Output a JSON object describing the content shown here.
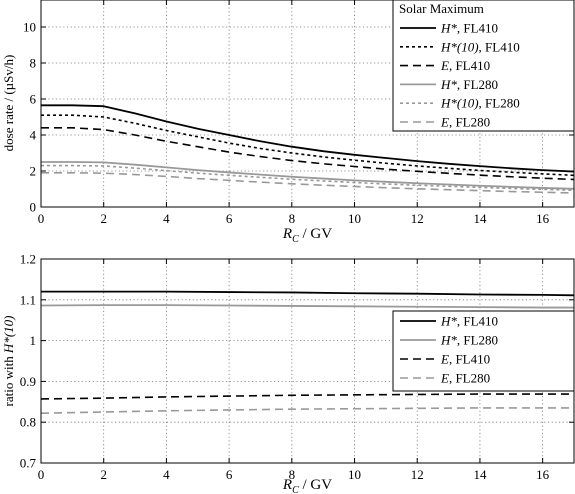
{
  "chart_data": [
    {
      "type": "line",
      "legend_title": "Solar Maximum",
      "legend_position": "top-right",
      "xlabel": {
        "main": "R",
        "sub": "C",
        "rest": " / GV"
      },
      "ylabel": "dose rate / (µSv/h)",
      "xlim": [
        0,
        17
      ],
      "ylim": [
        0,
        11.5
      ],
      "xticks": [
        0,
        2,
        4,
        6,
        8,
        10,
        12,
        14,
        16
      ],
      "yticks": [
        0,
        2,
        4,
        6,
        8,
        10
      ],
      "grid": true,
      "series": [
        {
          "name": "H*, FL410",
          "label_parts": [
            {
              "t": "H*",
              "i": true
            },
            {
              "t": ", FL410",
              "i": false
            }
          ],
          "color": "#000000",
          "dash": "",
          "width": 1.8,
          "x": [
            0,
            1,
            2,
            3,
            4,
            5,
            6,
            7,
            8,
            9,
            10,
            11,
            12,
            13,
            14,
            15,
            16,
            17
          ],
          "y": [
            5.65,
            5.65,
            5.6,
            5.2,
            4.75,
            4.35,
            4.0,
            3.65,
            3.35,
            3.1,
            2.9,
            2.72,
            2.55,
            2.4,
            2.27,
            2.15,
            2.05,
            1.97
          ]
        },
        {
          "name": "H*(10), FL410",
          "label_parts": [
            {
              "t": "H*(10)",
              "i": true
            },
            {
              "t": ", FL410",
              "i": false
            }
          ],
          "color": "#000000",
          "dash": "3,3",
          "width": 1.6,
          "x": [
            0,
            1,
            2,
            3,
            4,
            5,
            6,
            7,
            8,
            9,
            10,
            11,
            12,
            13,
            14,
            15,
            16,
            17
          ],
          "y": [
            5.1,
            5.1,
            5.0,
            4.65,
            4.25,
            3.9,
            3.55,
            3.25,
            3.0,
            2.78,
            2.6,
            2.43,
            2.28,
            2.15,
            2.03,
            1.93,
            1.84,
            1.76
          ]
        },
        {
          "name": "E, FL410",
          "label_parts": [
            {
              "t": "E",
              "i": true
            },
            {
              "t": ", FL410",
              "i": false
            }
          ],
          "color": "#000000",
          "dash": "8,5",
          "width": 1.6,
          "x": [
            0,
            1,
            2,
            3,
            4,
            5,
            6,
            7,
            8,
            9,
            10,
            11,
            12,
            13,
            14,
            15,
            16,
            17
          ],
          "y": [
            4.4,
            4.4,
            4.3,
            4.0,
            3.65,
            3.35,
            3.05,
            2.8,
            2.58,
            2.4,
            2.25,
            2.1,
            1.98,
            1.87,
            1.77,
            1.68,
            1.6,
            1.53
          ]
        },
        {
          "name": "H*, FL280",
          "label_parts": [
            {
              "t": "H*",
              "i": true
            },
            {
              "t": ", FL280",
              "i": false
            }
          ],
          "color": "#999999",
          "dash": "",
          "width": 1.8,
          "x": [
            0,
            1,
            2,
            3,
            4,
            5,
            6,
            7,
            8,
            9,
            10,
            11,
            12,
            13,
            14,
            15,
            16,
            17
          ],
          "y": [
            2.5,
            2.5,
            2.48,
            2.35,
            2.2,
            2.05,
            1.92,
            1.8,
            1.68,
            1.58,
            1.48,
            1.4,
            1.32,
            1.25,
            1.18,
            1.12,
            1.06,
            1.01
          ]
        },
        {
          "name": "H*(10), FL280",
          "label_parts": [
            {
              "t": "H*(10)",
              "i": true
            },
            {
              "t": ", FL280",
              "i": false
            }
          ],
          "color": "#999999",
          "dash": "3,3",
          "width": 1.6,
          "x": [
            0,
            1,
            2,
            3,
            4,
            5,
            6,
            7,
            8,
            9,
            10,
            11,
            12,
            13,
            14,
            15,
            16,
            17
          ],
          "y": [
            2.3,
            2.3,
            2.28,
            2.16,
            2.02,
            1.88,
            1.76,
            1.65,
            1.54,
            1.45,
            1.36,
            1.28,
            1.21,
            1.15,
            1.09,
            1.03,
            0.98,
            0.93
          ]
        },
        {
          "name": "E, FL280",
          "label_parts": [
            {
              "t": "E",
              "i": true
            },
            {
              "t": ", FL280",
              "i": false
            }
          ],
          "color": "#999999",
          "dash": "8,5",
          "width": 1.6,
          "x": [
            0,
            1,
            2,
            3,
            4,
            5,
            6,
            7,
            8,
            9,
            10,
            11,
            12,
            13,
            14,
            15,
            16,
            17
          ],
          "y": [
            1.9,
            1.9,
            1.88,
            1.8,
            1.7,
            1.58,
            1.48,
            1.38,
            1.29,
            1.21,
            1.14,
            1.07,
            1.01,
            0.96,
            0.91,
            0.86,
            0.82,
            0.78
          ]
        }
      ]
    },
    {
      "type": "line",
      "legend_position": "center-right",
      "xlabel": {
        "main": "R",
        "sub": "C",
        "rest": " / GV"
      },
      "ylabel": {
        "plain": "ratio with ",
        "italic": "H*(10)"
      },
      "xlim": [
        0,
        17
      ],
      "ylim": [
        0.7,
        1.2
      ],
      "xticks": [
        0,
        2,
        4,
        6,
        8,
        10,
        12,
        14,
        16
      ],
      "yticks": [
        0.7,
        0.8,
        0.9,
        1,
        1.1,
        1.2
      ],
      "ytick_labels": [
        "0.7",
        "0.8",
        "0.9",
        "1",
        "1.1",
        "1.2"
      ],
      "grid": true,
      "series": [
        {
          "name": "H*, FL410",
          "label_parts": [
            {
              "t": "H*",
              "i": true
            },
            {
              "t": ", FL410",
              "i": false
            }
          ],
          "color": "#000000",
          "dash": "",
          "width": 1.8,
          "x": [
            0,
            2,
            4,
            6,
            8,
            10,
            12,
            14,
            16,
            17
          ],
          "y": [
            1.12,
            1.12,
            1.12,
            1.119,
            1.118,
            1.116,
            1.115,
            1.113,
            1.112,
            1.111
          ]
        },
        {
          "name": "H*, FL280",
          "label_parts": [
            {
              "t": "H*",
              "i": true
            },
            {
              "t": ", FL280",
              "i": false
            }
          ],
          "color": "#999999",
          "dash": "",
          "width": 1.8,
          "x": [
            0,
            2,
            4,
            6,
            8,
            10,
            12,
            14,
            16,
            17
          ],
          "y": [
            1.086,
            1.087,
            1.087,
            1.086,
            1.085,
            1.084,
            1.083,
            1.082,
            1.081,
            1.081
          ]
        },
        {
          "name": "E, FL410",
          "label_parts": [
            {
              "t": "E",
              "i": true
            },
            {
              "t": ", FL410",
              "i": false
            }
          ],
          "color": "#000000",
          "dash": "8,5",
          "width": 1.6,
          "x": [
            0,
            2,
            4,
            6,
            8,
            10,
            12,
            14,
            16,
            17
          ],
          "y": [
            0.857,
            0.859,
            0.862,
            0.864,
            0.866,
            0.867,
            0.868,
            0.869,
            0.869,
            0.869
          ]
        },
        {
          "name": "E, FL280",
          "label_parts": [
            {
              "t": "E",
              "i": true
            },
            {
              "t": ", FL280",
              "i": false
            }
          ],
          "color": "#999999",
          "dash": "8,5",
          "width": 1.6,
          "x": [
            0,
            2,
            4,
            6,
            8,
            10,
            12,
            14,
            16,
            17
          ],
          "y": [
            0.822,
            0.825,
            0.828,
            0.83,
            0.832,
            0.833,
            0.834,
            0.835,
            0.835,
            0.835
          ]
        }
      ]
    }
  ]
}
